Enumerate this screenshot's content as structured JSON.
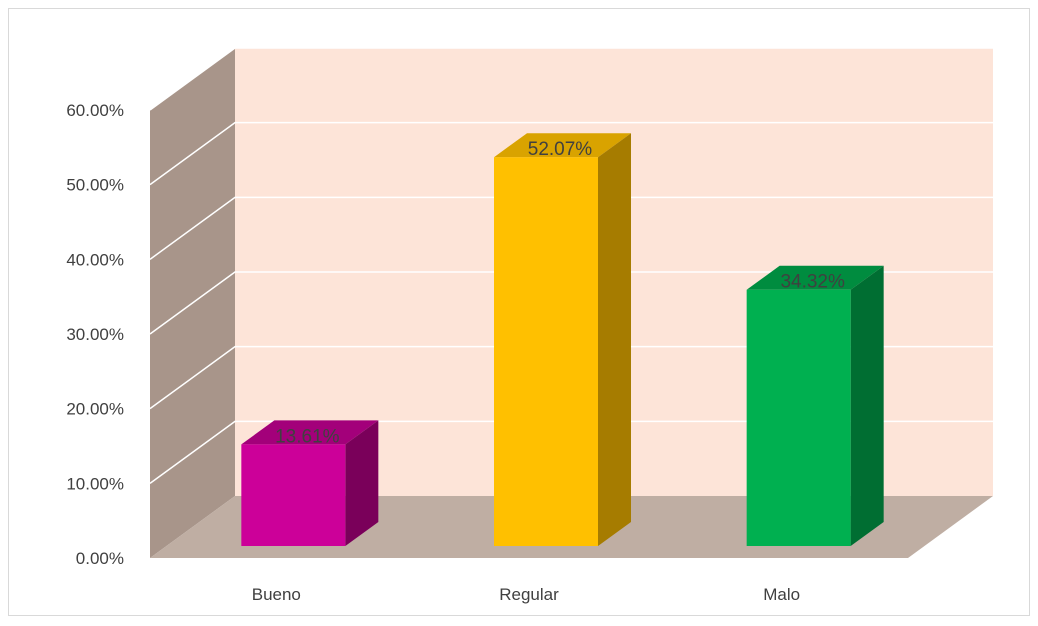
{
  "chart_data": {
    "type": "bar",
    "title": "",
    "xlabel": "",
    "ylabel": "",
    "categories": [
      "Bueno",
      "Regular",
      "Malo"
    ],
    "values": [
      13.61,
      52.07,
      34.32
    ],
    "data_labels": [
      "13.61%",
      "52.07%",
      "34.32%"
    ],
    "y_ticks": [
      "0.00%",
      "10.00%",
      "20.00%",
      "30.00%",
      "40.00%",
      "50.00%",
      "60.00%"
    ],
    "y_tick_values": [
      0,
      10,
      20,
      30,
      40,
      50,
      60
    ],
    "ylim": [
      0,
      60
    ],
    "grid": true,
    "legend": "none",
    "style": "3d-column",
    "colors": {
      "back_wall": "#fde4d8",
      "side_wall": "#a8958a",
      "floor": "#bfaea3",
      "gridline": "#ffffff",
      "bars": [
        {
          "front": "#cc0099",
          "side": "#7a005a",
          "top": "#a3007a"
        },
        {
          "front": "#ffc000",
          "side": "#a67c00",
          "top": "#d9a300"
        },
        {
          "front": "#00b050",
          "side": "#006e32",
          "top": "#008c3f"
        }
      ]
    }
  }
}
